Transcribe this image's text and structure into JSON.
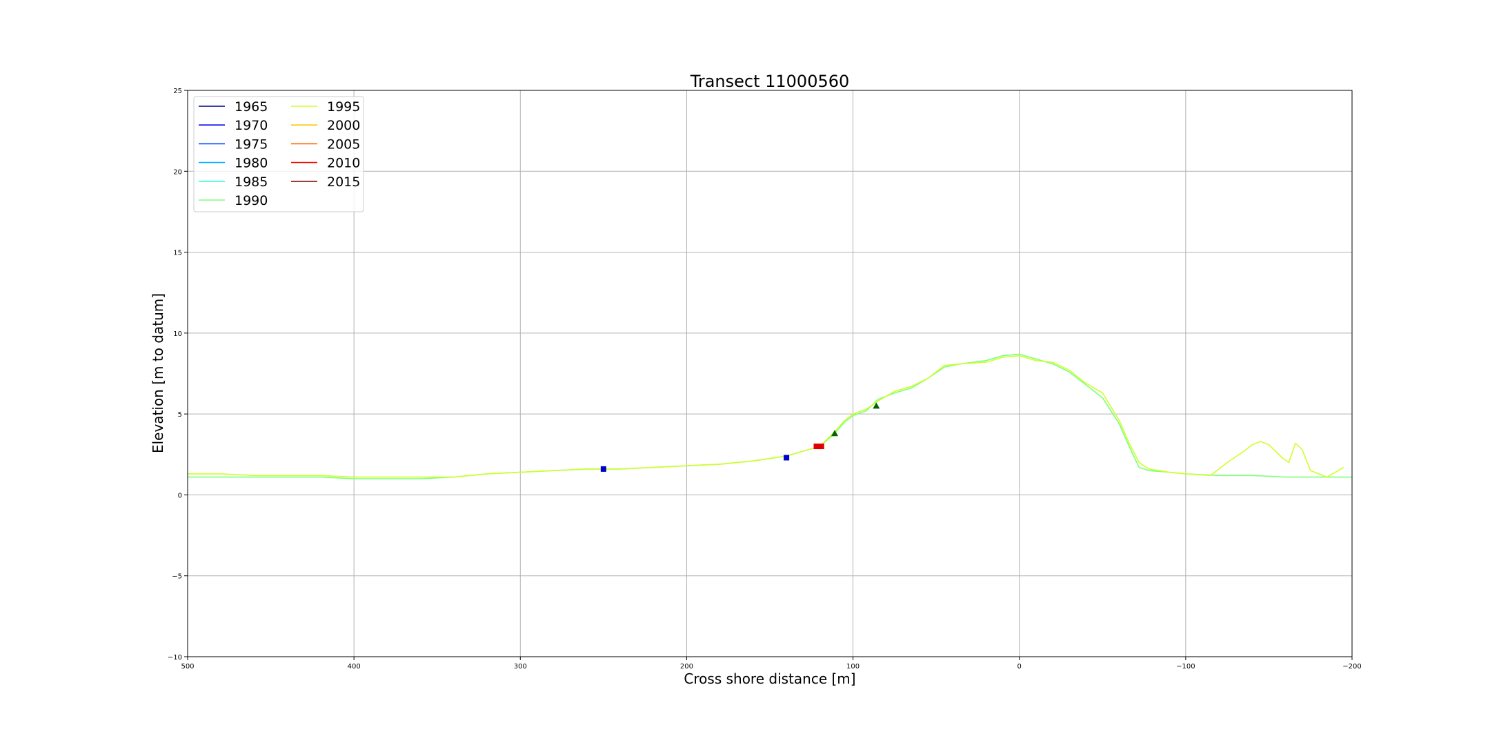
{
  "chart_data": {
    "type": "line",
    "title": "Transect 11000560",
    "xlabel": "Cross shore distance [m]",
    "ylabel": "Elevation [m to datum]",
    "xlim": [
      500,
      -200
    ],
    "ylim": [
      -10,
      25
    ],
    "x_inverted": true,
    "xticks": [
      500,
      400,
      300,
      200,
      100,
      0,
      -100,
      -200
    ],
    "xtick_labels": [
      "500",
      "400",
      "300",
      "200",
      "100",
      "0",
      "−100",
      "−200"
    ],
    "yticks": [
      -10,
      -5,
      0,
      5,
      10,
      15,
      20,
      25
    ],
    "ytick_labels": [
      "−10",
      "−5",
      "0",
      "5",
      "10",
      "15",
      "20",
      "25"
    ],
    "grid": true,
    "legend_position": "top-left",
    "legend_columns": 2,
    "series": [
      {
        "name": "1965",
        "color": "#00007f",
        "x": [],
        "y": []
      },
      {
        "name": "1970",
        "color": "#0000f1",
        "x": [],
        "y": []
      },
      {
        "name": "1975",
        "color": "#004cff",
        "x": [],
        "y": []
      },
      {
        "name": "1980",
        "color": "#00b0ff",
        "x": [],
        "y": []
      },
      {
        "name": "1985",
        "color": "#29ffce",
        "x": [],
        "y": []
      },
      {
        "name": "1990",
        "color": "#7dff7a",
        "x": [
          500,
          480,
          460,
          440,
          420,
          400,
          380,
          360,
          340,
          320,
          300,
          280,
          260,
          240,
          220,
          200,
          180,
          160,
          140,
          130,
          120,
          112,
          105,
          100,
          92,
          85,
          75,
          65,
          55,
          45,
          35,
          20,
          10,
          0,
          -10,
          -20,
          -30,
          -40,
          -50,
          -60,
          -66,
          -72,
          -78,
          -90,
          -100,
          -120,
          -140,
          -160,
          -180,
          -200
        ],
        "y": [
          1.1,
          1.1,
          1.1,
          1.1,
          1.1,
          1.0,
          1.0,
          1.0,
          1.1,
          1.3,
          1.4,
          1.5,
          1.6,
          1.6,
          1.7,
          1.8,
          1.9,
          2.1,
          2.4,
          2.7,
          3.0,
          3.7,
          4.5,
          4.9,
          5.2,
          5.9,
          6.3,
          6.6,
          7.2,
          7.9,
          8.1,
          8.3,
          8.6,
          8.7,
          8.4,
          8.1,
          7.6,
          6.8,
          6.0,
          4.4,
          3.0,
          1.7,
          1.5,
          1.4,
          1.3,
          1.2,
          1.2,
          1.1,
          1.1,
          1.1
        ]
      },
      {
        "name": "1995",
        "color": "#ceff29",
        "x": [
          500,
          480,
          460,
          440,
          420,
          400,
          380,
          360,
          340,
          320,
          300,
          280,
          260,
          240,
          220,
          200,
          180,
          160,
          140,
          130,
          120,
          112,
          105,
          100,
          92,
          85,
          75,
          65,
          55,
          45,
          35,
          20,
          10,
          0,
          -10,
          -20,
          -30,
          -40,
          -50,
          -60,
          -66,
          -72,
          -78,
          -90,
          -100,
          -115,
          -125,
          -135,
          -140,
          -145,
          -150,
          -155,
          -158,
          -162,
          -166,
          -170,
          -175,
          -185,
          -195
        ],
        "y": [
          1.3,
          1.3,
          1.2,
          1.2,
          1.2,
          1.1,
          1.1,
          1.1,
          1.1,
          1.3,
          1.4,
          1.5,
          1.6,
          1.6,
          1.7,
          1.8,
          1.9,
          2.1,
          2.4,
          2.7,
          3.0,
          3.8,
          4.6,
          5.0,
          5.3,
          5.8,
          6.4,
          6.7,
          7.2,
          8.0,
          8.1,
          8.2,
          8.5,
          8.6,
          8.3,
          8.2,
          7.7,
          6.9,
          6.3,
          4.6,
          3.2,
          2.0,
          1.6,
          1.4,
          1.3,
          1.2,
          2.0,
          2.7,
          3.1,
          3.3,
          3.1,
          2.6,
          2.3,
          2.0,
          3.2,
          2.8,
          1.5,
          1.1,
          1.7
        ]
      },
      {
        "name": "2000",
        "color": "#ffc400",
        "x": [],
        "y": []
      },
      {
        "name": "2005",
        "color": "#ff6800",
        "x": [],
        "y": []
      },
      {
        "name": "2010",
        "color": "#f10800",
        "x": [],
        "y": []
      },
      {
        "name": "2015",
        "color": "#7f0000",
        "x": [],
        "y": []
      }
    ],
    "markers": [
      {
        "shape": "square",
        "color": "#0000cc",
        "x": 250,
        "y": 1.6
      },
      {
        "shape": "square",
        "color": "#0000cc",
        "x": 140,
        "y": 2.3
      },
      {
        "shape": "square",
        "color": "#e00000",
        "x": 122,
        "y": 3.0
      },
      {
        "shape": "square",
        "color": "#e00000",
        "x": 119,
        "y": 3.0
      },
      {
        "shape": "triangle",
        "color": "#006400",
        "x": 111,
        "y": 3.8
      },
      {
        "shape": "triangle",
        "color": "#006400",
        "x": 86,
        "y": 5.5
      }
    ]
  }
}
